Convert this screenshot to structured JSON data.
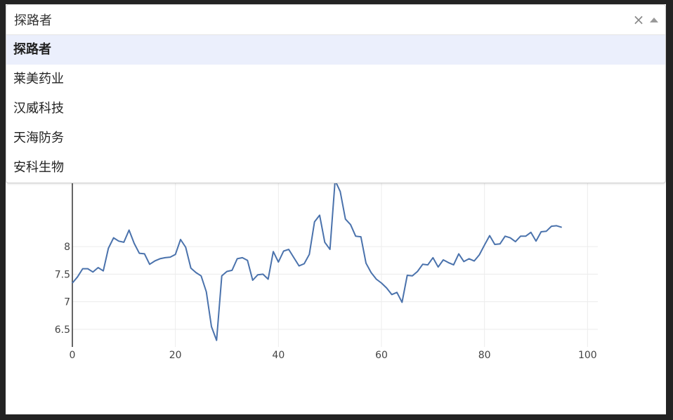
{
  "dropdown": {
    "search_value": "探路者",
    "clear_glyph": "×",
    "options": [
      {
        "label": "探路者",
        "selected": true
      },
      {
        "label": "莱美药业",
        "selected": false
      },
      {
        "label": "汉威科技",
        "selected": false
      },
      {
        "label": "天海防务",
        "selected": false
      },
      {
        "label": "安科生物",
        "selected": false
      }
    ]
  },
  "chart_data": {
    "type": "line",
    "xlim": [
      0,
      102
    ],
    "ylim": [
      6.18,
      9.85
    ],
    "x_ticks": [
      0,
      20,
      40,
      60,
      80,
      100
    ],
    "y_ticks": [
      6.5,
      7,
      7.5,
      8
    ],
    "y_tick_labels": [
      "6.5",
      "7",
      "7.5",
      "8"
    ],
    "grid": true,
    "color": "#4a72ac",
    "series": [
      {
        "values": [
          7.34,
          7.45,
          7.6,
          7.6,
          7.54,
          7.62,
          7.56,
          7.97,
          8.16,
          8.1,
          8.08,
          8.3,
          8.06,
          7.88,
          7.87,
          7.68,
          7.74,
          7.78,
          7.8,
          7.81,
          7.86,
          8.13,
          7.99,
          7.61,
          7.53,
          7.47,
          7.18,
          6.55,
          6.3,
          7.47,
          7.55,
          7.57,
          7.78,
          7.8,
          7.75,
          7.39,
          7.49,
          7.5,
          7.41,
          7.91,
          7.72,
          7.92,
          7.95,
          7.8,
          7.65,
          7.69,
          7.86,
          8.45,
          8.57,
          8.08,
          7.95,
          9.2,
          9.0,
          8.5,
          8.4,
          8.19,
          8.18,
          7.7,
          7.53,
          7.41,
          7.34,
          7.25,
          7.13,
          7.17,
          6.99,
          7.48,
          7.47,
          7.55,
          7.68,
          7.67,
          7.8,
          7.63,
          7.76,
          7.71,
          7.67,
          7.87,
          7.73,
          7.78,
          7.74,
          7.85,
          8.03,
          8.2,
          8.04,
          8.05,
          8.19,
          8.16,
          8.09,
          8.19,
          8.19,
          8.26,
          8.1,
          8.27,
          8.28,
          8.37,
          8.38,
          8.35
        ]
      }
    ]
  }
}
